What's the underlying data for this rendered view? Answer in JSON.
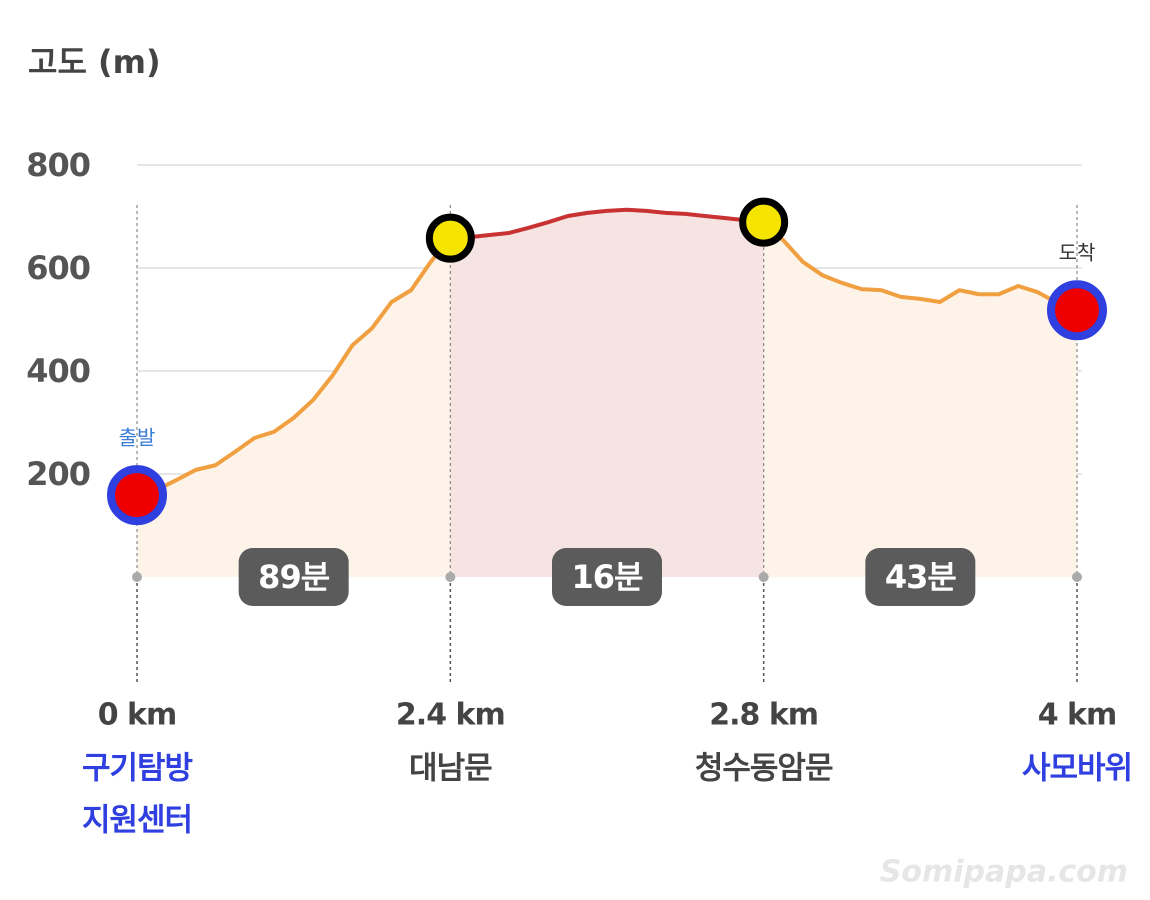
{
  "chart_data": {
    "type": "elevation-profile",
    "y_label": "고도 (m)",
    "ylim": [
      0,
      800
    ],
    "yticks": [
      200,
      400,
      600,
      800
    ],
    "grid": true,
    "segments": [
      {
        "time": "89분",
        "color": "#f0a040",
        "fill": "#fdf3e8",
        "values": [
          159,
          169,
          188,
          208,
          217,
          243,
          270,
          282,
          309,
          344,
          392,
          450,
          483,
          534,
          557,
          612,
          658
        ]
      },
      {
        "time": "16분",
        "color": "#c83232",
        "fill": "#f6e4e2",
        "values": [
          658,
          660,
          664,
          668,
          678,
          689,
          701,
          707,
          711,
          713,
          711,
          707,
          705,
          701,
          697,
          693,
          689
        ]
      },
      {
        "time": "43분",
        "color": "#f0a040",
        "fill": "#fdf3e8",
        "values": [
          689,
          654,
          612,
          586,
          571,
          559,
          557,
          544,
          540,
          534,
          557,
          549,
          549,
          565,
          553,
          532,
          518
        ]
      }
    ],
    "waypoints": [
      {
        "distance": "0 km",
        "name": [
          "구기탐방",
          "지원센터"
        ],
        "color": "#2f3fe0",
        "badge": "출발",
        "badge_color": "#3a7bd5"
      },
      {
        "distance": "2.4 km",
        "name": [
          "대남문"
        ],
        "color": "#444444"
      },
      {
        "distance": "2.8 km",
        "name": [
          "청수동암문"
        ],
        "color": "#444444"
      },
      {
        "distance": "4 km",
        "name": [
          "사모바위"
        ],
        "color": "#2f3fe0",
        "badge": "도착",
        "badge_color": "#333333"
      }
    ],
    "watermark": "Somipapa.com"
  }
}
